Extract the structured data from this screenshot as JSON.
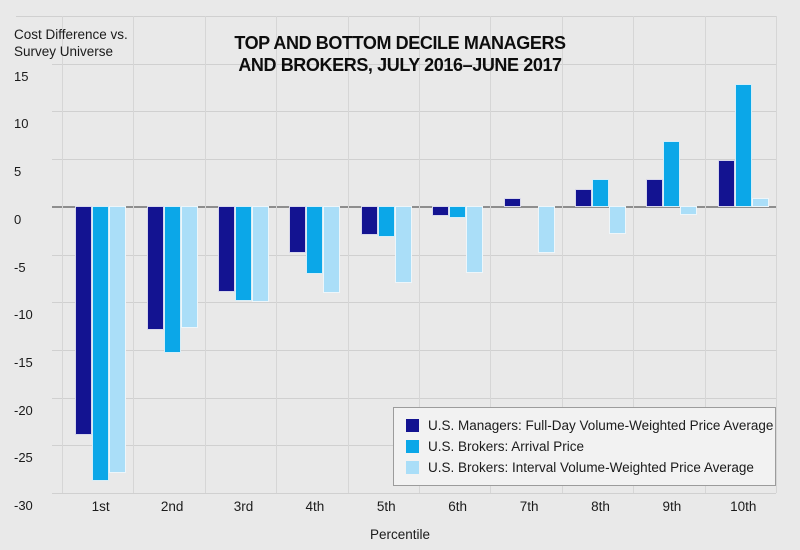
{
  "labels": {
    "y_axis_title_line1": "Cost Difference vs.",
    "y_axis_title_line2": "Survey Universe",
    "title_line1": "TOP AND BOTTOM DECILE MANAGERS",
    "title_line2": "AND BROKERS, JULY 2016–JUNE 2017",
    "xlabel": "Percentile"
  },
  "colors": {
    "background": "#e9e9e9",
    "gridline": "#d0d0d0",
    "zero_line": "#8e8e8e",
    "legend_background": "#f2f2f2",
    "legend_border": "#9c9c9c",
    "navy": "#131391",
    "cyan": "#0ba7e8",
    "light_blue": "#aadef8"
  },
  "chart_data": {
    "type": "bar",
    "title": "TOP AND BOTTOM DECILE MANAGERS AND BROKERS, JULY 2016–JUNE 2017",
    "xlabel": "Percentile",
    "ylabel": "Cost Difference vs. Survey Universe",
    "categories": [
      "1st",
      "2nd",
      "3rd",
      "4th",
      "5th",
      "6th",
      "7th",
      "8th",
      "9th",
      "10th"
    ],
    "series": [
      {
        "name": "U.S. Managers: Full-Day Volume-Weighted Price Average",
        "color": "#131391",
        "values": [
          -24,
          -13,
          -9,
          -5,
          -3.1,
          -1.1,
          0.9,
          1.9,
          2.9,
          4.9
        ]
      },
      {
        "name": "U.S. Brokers: Arrival Price",
        "color": "#0ba7e8",
        "values": [
          -28.8,
          -15.4,
          -10,
          -7.1,
          -3.3,
          -1.3,
          0,
          2.9,
          6.9,
          12.9
        ]
      },
      {
        "name": "U.S. Brokers: Interval Volume-Weighted Price Average",
        "color": "#aadef8",
        "values": [
          -28,
          -12.8,
          -10.1,
          -9.1,
          -8.1,
          -7,
          -4.9,
          -3,
          -1,
          0.9
        ]
      }
    ],
    "yticks": [
      15,
      10,
      5,
      0,
      -5,
      -10,
      -15,
      -20,
      -25,
      -30
    ],
    "ylim": [
      -30,
      20
    ],
    "grid": true,
    "legend_position": "bottom-right"
  }
}
